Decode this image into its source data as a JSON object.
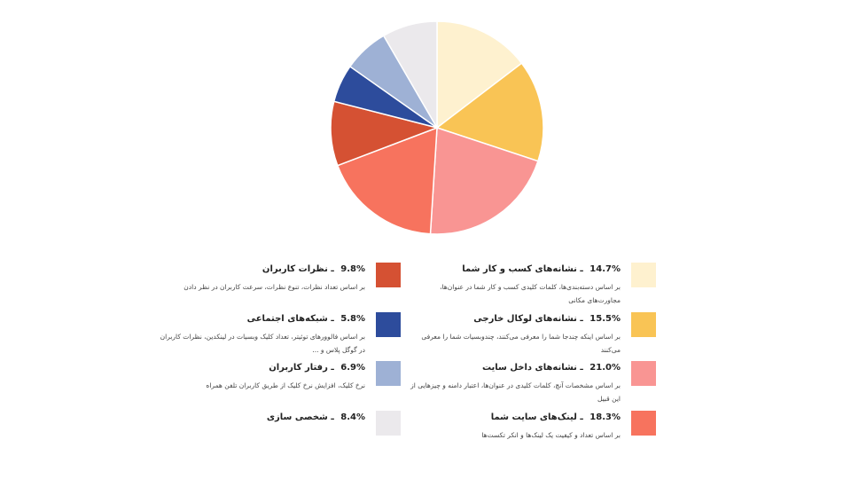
{
  "chart_data": {
    "type": "pie",
    "slices": [
      {
        "label": "نشانه‌های کسب و کار شما",
        "value": 14.7,
        "percent_label": "14.7%",
        "description": "بر اساس دسته‌بندی‌ها، کلمات کلیدی کسب و کار شما در عنوان‌ها، مجاورت‌های مکانی",
        "color": "#fef1cf"
      },
      {
        "label": "نشانه‌های لوکال خارجی",
        "value": 15.5,
        "percent_label": "15.5%",
        "description": "بر اساس اینکه چندجا شما را معرفی می‌کنند، چندوبسیات شما را معرفی می‌کنند",
        "color": "#f9c455"
      },
      {
        "label": "نشانه‌های داخل سایت",
        "value": 21.0,
        "percent_label": "21.0%",
        "description": "بر اساس مشخصات آنچ، کلمات کلیدی در عنوان‌ها، اعتبار دامنه و چیزهایی از این قبیل",
        "color": "#f99593"
      },
      {
        "label": "لینک‌های سایت شما",
        "value": 18.3,
        "percent_label": "18.3%",
        "description": "بر اساس تعداد و کیفیت یک لینک‌ها و انکر تکست‌ها",
        "color": "#f7735e"
      },
      {
        "label": "نظرات کاربران",
        "value": 9.8,
        "percent_label": "9.8%",
        "description": "بر اساس تعداد نظرات، تنوع نظرات، سرعت کاربران در نظر دادن",
        "color": "#d55133"
      },
      {
        "label": "شبکه‌های اجتماعی",
        "value": 5.8,
        "percent_label": "5.8%",
        "description": "بر اساس فالوورهای توئیتر، تعداد کلیک وبسیات در لینکدین، نظرات کاربران در گوگل پلاس و ...",
        "color": "#2d4c9c"
      },
      {
        "label": "رفتار کاربران",
        "value": 6.9,
        "percent_label": "6.9%",
        "description": "نرخ کلیک، افزایش نرخ کلیک از طریق کاربران تلفن همراه",
        "color": "#9eb1d5"
      },
      {
        "label": "شخصی سازی",
        "value": 8.4,
        "percent_label": "8.4%",
        "description": "",
        "color": "#ebe9ec"
      }
    ]
  }
}
